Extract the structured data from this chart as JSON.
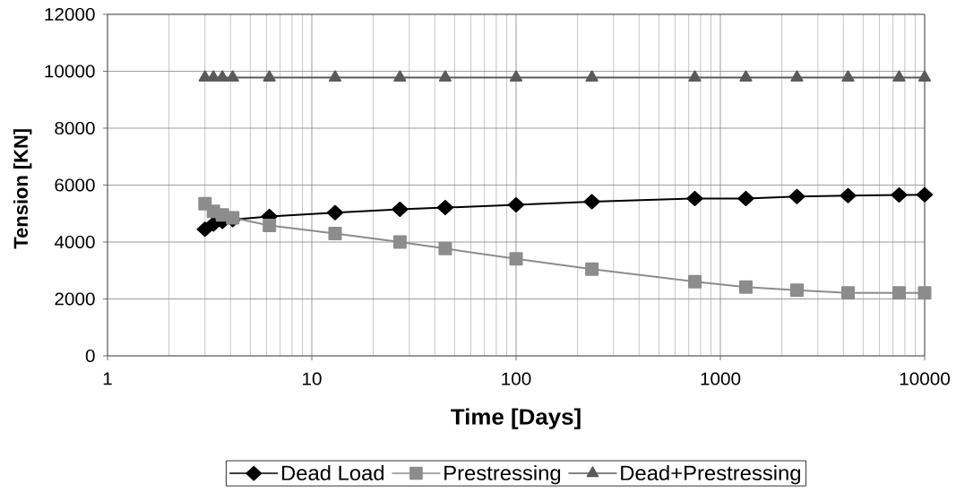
{
  "chart_data": {
    "type": "line",
    "xlabel": "Time [Days]",
    "ylabel": "Tension [KN]",
    "x": [
      3,
      3.3,
      3.65,
      4.1,
      6.2,
      13,
      27,
      45,
      100,
      235,
      750,
      1333,
      2371,
      4217,
      7500,
      10000
    ],
    "series": [
      {
        "name": "Dead Load",
        "color": "#000000",
        "marker": "diamond",
        "values": [
          4450,
          4630,
          4720,
          4790,
          4900,
          5030,
          5150,
          5210,
          5310,
          5420,
          5530,
          5530,
          5600,
          5630,
          5650,
          5660
        ]
      },
      {
        "name": "Prestressing",
        "color": "#8c8c8c",
        "marker": "square",
        "values": [
          5350,
          5080,
          4950,
          4850,
          4580,
          4300,
          4000,
          3770,
          3410,
          3050,
          2610,
          2420,
          2310,
          2210,
          2210,
          2210
        ]
      },
      {
        "name": "Dead+Prestressing",
        "color": "#5a5a5a",
        "marker": "triangle",
        "values": [
          9780,
          9780,
          9780,
          9780,
          9780,
          9780,
          9780,
          9780,
          9780,
          9780,
          9780,
          9780,
          9780,
          9780,
          9780,
          9780
        ]
      }
    ],
    "log": "x",
    "xlim": [
      1,
      10000
    ],
    "xticks": [
      1,
      10,
      100,
      1000,
      10000
    ],
    "ylim": [
      0,
      12000
    ],
    "yticks": [
      0,
      2000,
      4000,
      6000,
      8000,
      10000,
      12000
    ],
    "grid": true,
    "legend": "bottom",
    "line_style": "solid"
  }
}
